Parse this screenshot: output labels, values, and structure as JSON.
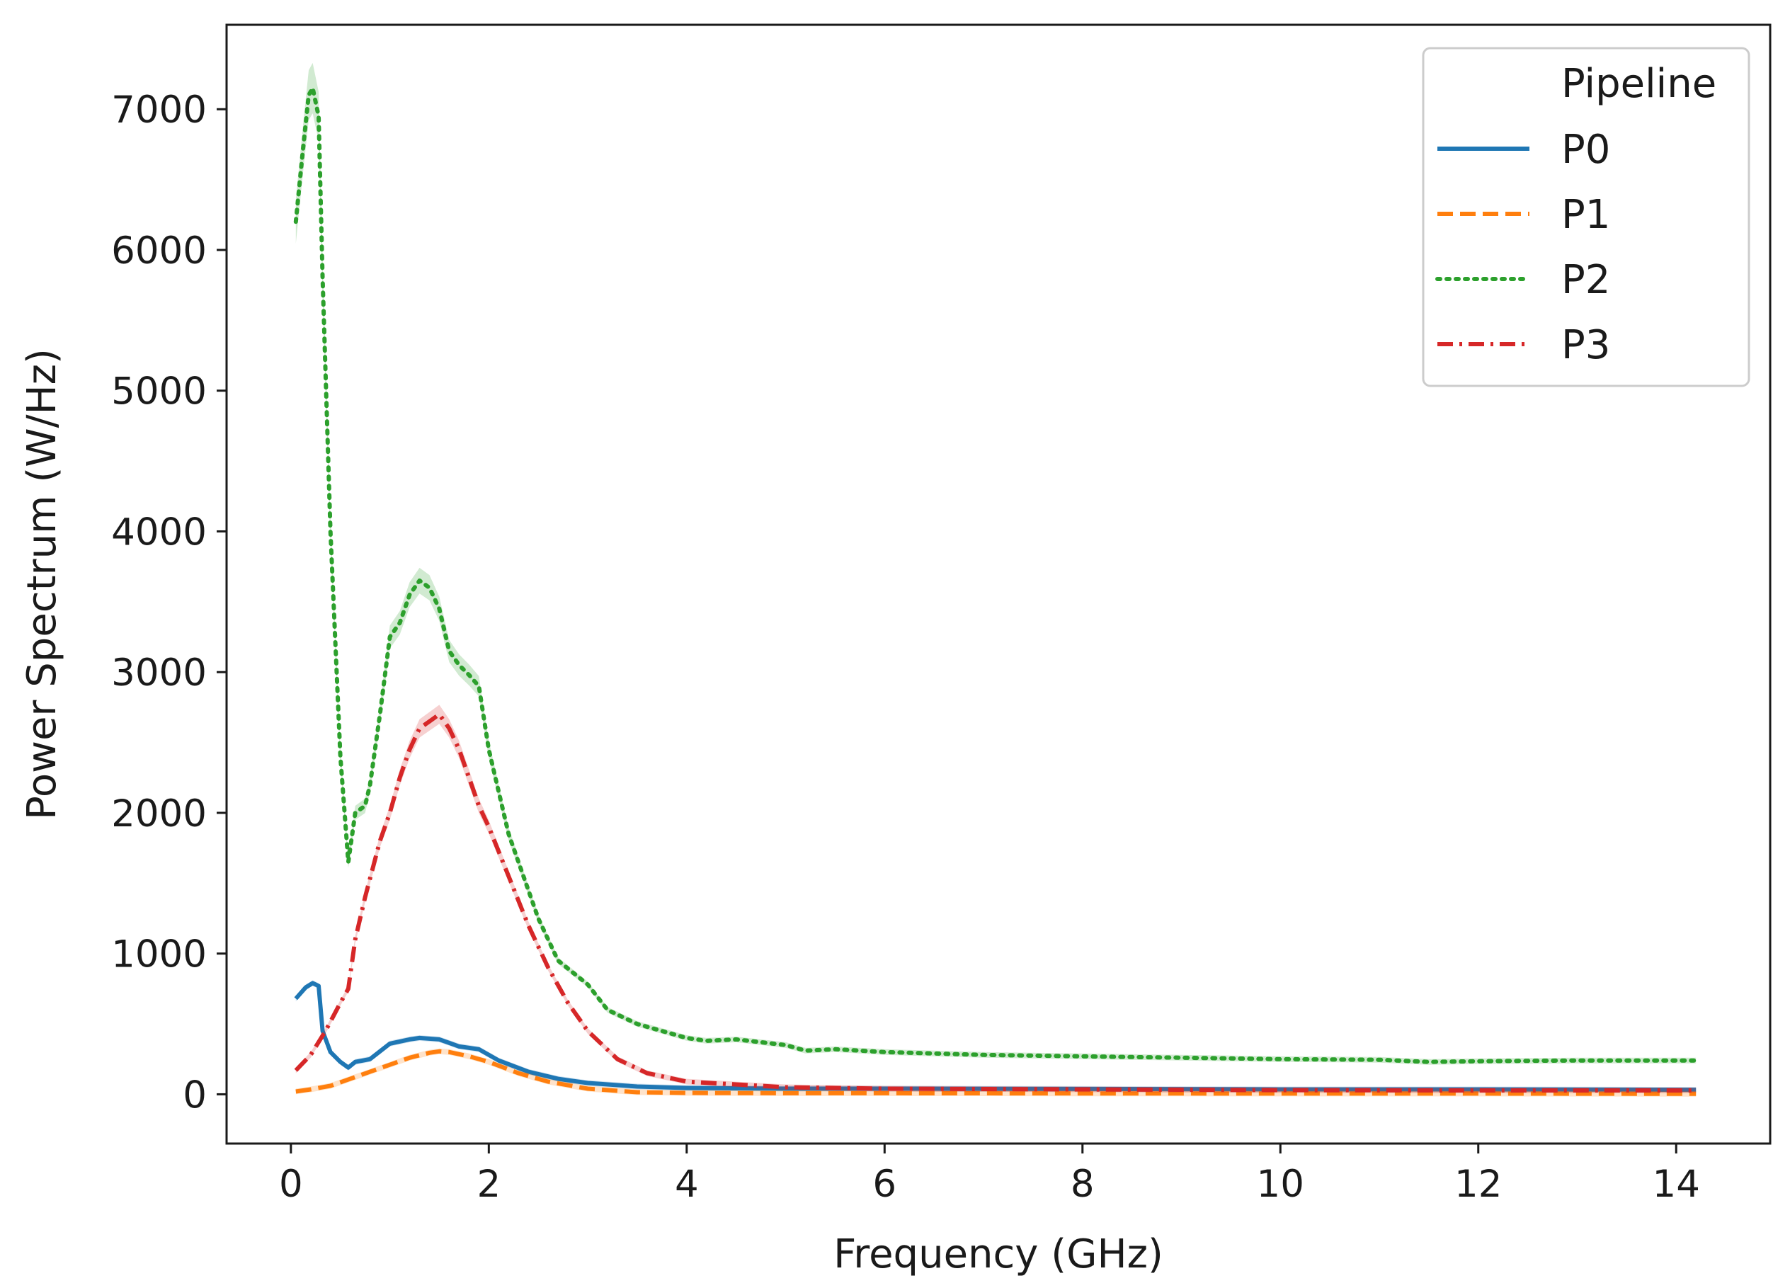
{
  "chart_data": {
    "type": "line",
    "xlabel": "Frequency (GHz)",
    "ylabel": "Power Spectrum (W/Hz)",
    "xlim": [
      -0.65,
      14.95
    ],
    "ylim": [
      -350,
      7600
    ],
    "xticks": [
      0,
      2,
      4,
      6,
      8,
      10,
      12,
      14
    ],
    "yticks": [
      0,
      1000,
      2000,
      3000,
      4000,
      5000,
      6000,
      7000
    ],
    "grid": false,
    "legend": {
      "title": "Pipeline",
      "placement": "top-right"
    },
    "series": [
      {
        "name": "P0",
        "color": "#1f77b4",
        "dash": "solid",
        "x": [
          0.05,
          0.15,
          0.22,
          0.28,
          0.32,
          0.4,
          0.5,
          0.58,
          0.65,
          0.8,
          1.0,
          1.2,
          1.3,
          1.5,
          1.7,
          1.9,
          2.1,
          2.4,
          2.7,
          3.0,
          3.5,
          4.0,
          5.0,
          6.0,
          8.0,
          10.0,
          12.0,
          14.2
        ],
        "values": [
          680,
          760,
          790,
          770,
          450,
          300,
          230,
          190,
          230,
          250,
          360,
          390,
          400,
          390,
          340,
          320,
          240,
          160,
          110,
          80,
          55,
          45,
          40,
          40,
          38,
          35,
          35,
          32
        ]
      },
      {
        "name": "P1",
        "color": "#ff7f0e",
        "dash": "dashed",
        "x": [
          0.05,
          0.2,
          0.4,
          0.6,
          0.8,
          1.0,
          1.2,
          1.4,
          1.5,
          1.6,
          1.8,
          2.0,
          2.3,
          2.6,
          3.0,
          3.5,
          4.0,
          5.0,
          6.0,
          8.0,
          10.0,
          12.0,
          14.2
        ],
        "values": [
          20,
          35,
          60,
          110,
          160,
          210,
          260,
          295,
          305,
          300,
          270,
          230,
          150,
          90,
          40,
          15,
          10,
          8,
          8,
          6,
          5,
          5,
          3
        ]
      },
      {
        "name": "P2",
        "color": "#2ca02c",
        "dash": "dotted",
        "x": [
          0.05,
          0.12,
          0.18,
          0.22,
          0.28,
          0.32,
          0.4,
          0.5,
          0.58,
          0.65,
          0.75,
          0.8,
          0.9,
          1.0,
          1.1,
          1.2,
          1.3,
          1.4,
          1.5,
          1.6,
          1.7,
          1.8,
          1.9,
          2.0,
          2.2,
          2.5,
          2.7,
          3.0,
          3.2,
          3.5,
          4.0,
          4.2,
          4.5,
          5.0,
          5.2,
          5.5,
          6.0,
          6.5,
          7.0,
          8.0,
          9.0,
          10.0,
          11.0,
          11.5,
          12.0,
          13.0,
          14.2
        ],
        "values": [
          6200,
          6700,
          7100,
          7150,
          6950,
          5800,
          4000,
          2400,
          1650,
          2000,
          2050,
          2200,
          2700,
          3250,
          3350,
          3550,
          3650,
          3600,
          3450,
          3150,
          3050,
          2980,
          2900,
          2450,
          1850,
          1250,
          950,
          780,
          600,
          500,
          400,
          380,
          390,
          350,
          310,
          320,
          300,
          290,
          280,
          270,
          260,
          250,
          245,
          230,
          235,
          240,
          240
        ]
      },
      {
        "name": "P3",
        "color": "#d62728",
        "dash": "dashdot",
        "x": [
          0.05,
          0.2,
          0.35,
          0.5,
          0.58,
          0.65,
          0.75,
          0.9,
          1.0,
          1.1,
          1.2,
          1.3,
          1.4,
          1.5,
          1.6,
          1.7,
          1.8,
          1.9,
          2.0,
          2.2,
          2.4,
          2.6,
          2.8,
          3.0,
          3.3,
          3.6,
          4.0,
          4.5,
          5.0,
          6.0,
          8.0,
          10.0,
          12.0,
          14.2
        ],
        "values": [
          170,
          280,
          450,
          650,
          750,
          1100,
          1400,
          1800,
          2000,
          2250,
          2450,
          2600,
          2650,
          2700,
          2600,
          2450,
          2250,
          2050,
          1900,
          1550,
          1200,
          900,
          650,
          450,
          250,
          150,
          90,
          70,
          50,
          40,
          35,
          30,
          28,
          28
        ]
      }
    ]
  }
}
